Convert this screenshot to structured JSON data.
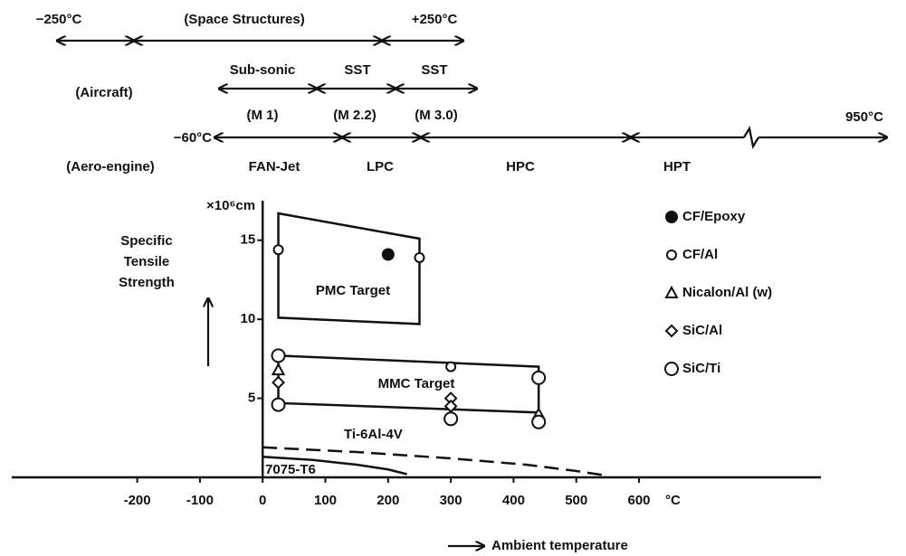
{
  "chart_data": {
    "type": "scatter",
    "ylabel": [
      "Specific",
      "Tensile",
      "Strength"
    ],
    "yunit": "×10⁶cm",
    "xlabel": "°C",
    "xlim": [
      -400,
      890
    ],
    "ylim": [
      0,
      17.5
    ],
    "xticks": [
      -200,
      -100,
      0,
      100,
      200,
      300,
      400,
      500,
      600
    ],
    "yticks": [
      5,
      10,
      15
    ],
    "legend": "right",
    "series": [
      {
        "name": "CF/Epoxy",
        "marker": "filled-circle",
        "color": "#111111",
        "x": [
          200
        ],
        "y": [
          14.1
        ]
      },
      {
        "name": "CF/Al",
        "marker": "circle",
        "color": "#111111",
        "x": [
          25,
          250,
          300
        ],
        "y": [
          14.4,
          13.9,
          7.0
        ]
      },
      {
        "name": "Nicalon/Al (w)",
        "marker": "triangle",
        "color": "#111111",
        "x": [
          25,
          440
        ],
        "y": [
          6.8,
          4.0
        ]
      },
      {
        "name": "SiC/Al",
        "marker": "diamond",
        "color": "#111111",
        "x": [
          25,
          300,
          300
        ],
        "y": [
          6.0,
          5.0,
          4.5
        ]
      },
      {
        "name": "SiC/Ti",
        "marker": "large-circle",
        "color": "#111111",
        "x": [
          25,
          25,
          300,
          440,
          440
        ],
        "y": [
          7.7,
          4.6,
          3.7,
          3.5,
          6.3
        ]
      }
    ],
    "regions": [
      {
        "name": "PMC Target",
        "x": [
          25,
          250,
          250,
          25
        ],
        "y": [
          16.7,
          15.1,
          9.7,
          10.1
        ]
      },
      {
        "name": "MMC Target",
        "x": [
          25,
          440,
          440,
          25
        ],
        "y": [
          7.7,
          7.0,
          4.1,
          4.7
        ]
      }
    ],
    "curves": [
      {
        "name": "Ti-6Al-4V",
        "style": "dashed",
        "x": [
          0,
          150,
          300,
          420,
          500,
          550
        ],
        "y": [
          1.9,
          1.6,
          1.2,
          0.8,
          0.4,
          0.1
        ]
      },
      {
        "name": "7075-T6",
        "style": "solid",
        "x": [
          0,
          80,
          150,
          200,
          230
        ],
        "y": [
          1.3,
          1.1,
          0.8,
          0.5,
          0.2
        ]
      }
    ],
    "annotations": [
      "−250°C",
      "(Space Structures)",
      "+250°C",
      "Sub-sonic",
      "SST",
      "SST",
      "(Aircraft)",
      "(M 1)",
      "(M 2.2)",
      "(M 3.0)",
      "950°C",
      "−60°C",
      "(Aero-engine)",
      "FAN-Jet",
      "LPC",
      "HPC",
      "HPT",
      "Ambient temperature"
    ]
  }
}
